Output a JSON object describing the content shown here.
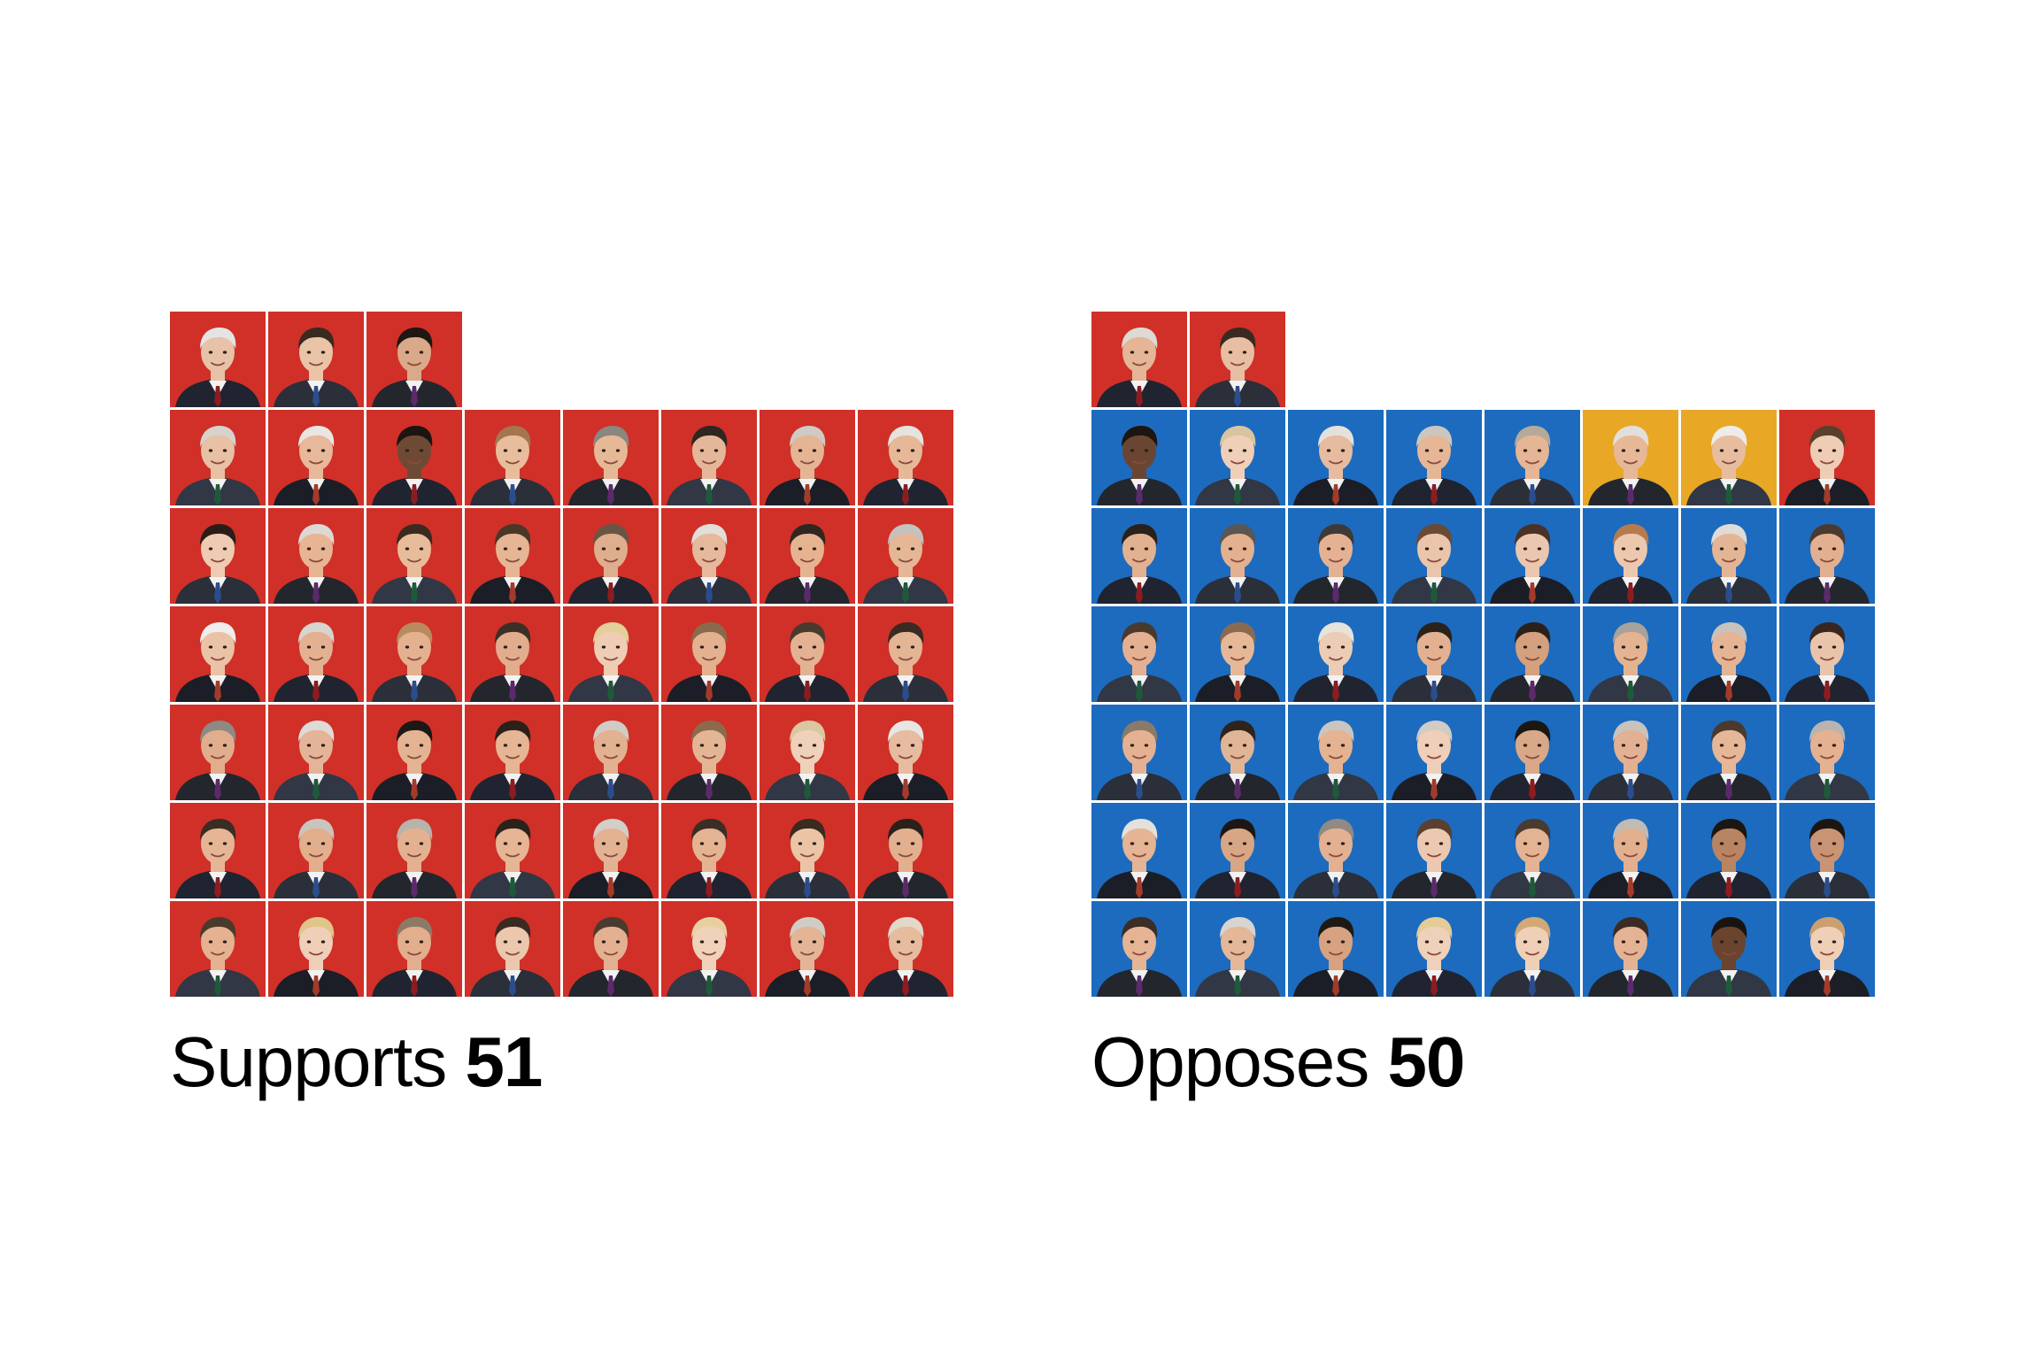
{
  "colors": {
    "republican": "#d03028",
    "democrat": "#1c6bbf",
    "independent": "#e8a826",
    "background": "#ffffff",
    "text": "#000000"
  },
  "chart_data": {
    "type": "waffle",
    "title": "",
    "groups": [
      {
        "key": "supports",
        "label": "Supports",
        "count": 51,
        "seats": [
          {
            "party": "republican",
            "skin": "#e7c2a8",
            "hair": "#e4e4e4"
          },
          {
            "party": "republican",
            "skin": "#e9c4a6",
            "hair": "#3a2a20"
          },
          {
            "party": "republican",
            "skin": "#d9a98a",
            "hair": "#1e1712"
          },
          {
            "party": "republican",
            "skin": "#e8c0a4",
            "hair": "#d7d2cc"
          },
          {
            "party": "republican",
            "skin": "#e7b899",
            "hair": "#e9e6e2"
          },
          {
            "party": "republican",
            "skin": "#6e4a34",
            "hair": "#1c1512"
          },
          {
            "party": "republican",
            "skin": "#e8bd9c",
            "hair": "#a3764f"
          },
          {
            "party": "republican",
            "skin": "#e6b996",
            "hair": "#8a8680"
          },
          {
            "party": "republican",
            "skin": "#e5b79a",
            "hair": "#2e2620"
          },
          {
            "party": "republican",
            "skin": "#e4b495",
            "hair": "#cfcac4"
          },
          {
            "party": "republican",
            "skin": "#e6b898",
            "hair": "#e6e3df"
          },
          {
            "party": "republican",
            "skin": "#efcbb3",
            "hair": "#2a1d17"
          },
          {
            "party": "republican",
            "skin": "#e7b594",
            "hair": "#dcd9d5"
          },
          {
            "party": "republican",
            "skin": "#e8bc9a",
            "hair": "#3a2a20"
          },
          {
            "party": "republican",
            "skin": "#e5b594",
            "hair": "#4a3728"
          },
          {
            "party": "republican",
            "skin": "#dfae8e",
            "hair": "#6a5544"
          },
          {
            "party": "republican",
            "skin": "#e6b99c",
            "hair": "#e2ded8"
          },
          {
            "party": "republican",
            "skin": "#e6b391",
            "hair": "#2f2720"
          },
          {
            "party": "republican",
            "skin": "#e5b796",
            "hair": "#c5c1bc"
          },
          {
            "party": "republican",
            "skin": "#eac3a6",
            "hair": "#f0eeec"
          },
          {
            "party": "republican",
            "skin": "#e3b191",
            "hair": "#d8d4cf"
          },
          {
            "party": "republican",
            "skin": "#e4b190",
            "hair": "#b98a5e"
          },
          {
            "party": "republican",
            "skin": "#e1ad8c",
            "hair": "#3c2f26"
          },
          {
            "party": "republican",
            "skin": "#efcdb4",
            "hair": "#e2cf9a"
          },
          {
            "party": "republican",
            "skin": "#e4b190",
            "hair": "#8a6a4c"
          },
          {
            "party": "republican",
            "skin": "#e3b292",
            "hair": "#4a3a2e"
          },
          {
            "party": "republican",
            "skin": "#e4b595",
            "hair": "#3a2a22"
          },
          {
            "party": "republican",
            "skin": "#e0ad8d",
            "hair": "#8e8984"
          },
          {
            "party": "republican",
            "skin": "#e3b497",
            "hair": "#dedbd6"
          },
          {
            "party": "republican",
            "skin": "#e4b392",
            "hair": "#1d1815"
          },
          {
            "party": "republican",
            "skin": "#e5b594",
            "hair": "#2a211b"
          },
          {
            "party": "republican",
            "skin": "#e2b191",
            "hair": "#cfcbc5"
          },
          {
            "party": "republican",
            "skin": "#e4b594",
            "hair": "#8c6a4c"
          },
          {
            "party": "republican",
            "skin": "#efd0b9",
            "hair": "#d9c7a0"
          },
          {
            "party": "republican",
            "skin": "#e6bba0",
            "hair": "#e8e6e2"
          },
          {
            "party": "republican",
            "skin": "#e5b595",
            "hair": "#3a2d24"
          },
          {
            "party": "republican",
            "skin": "#e2ae8c",
            "hair": "#c9c4be"
          },
          {
            "party": "republican",
            "skin": "#e3b190",
            "hair": "#b7b2ac"
          },
          {
            "party": "republican",
            "skin": "#e5b594",
            "hair": "#2b221c"
          },
          {
            "party": "republican",
            "skin": "#e3b293",
            "hair": "#d2cec8"
          },
          {
            "party": "republican",
            "skin": "#e4b391",
            "hair": "#3a2e26"
          },
          {
            "party": "republican",
            "skin": "#ebc4a6",
            "hair": "#3a2a20"
          },
          {
            "party": "republican",
            "skin": "#e2af8f",
            "hair": "#2a211c"
          },
          {
            "party": "republican",
            "skin": "#e4b291",
            "hair": "#4a3a2c"
          },
          {
            "party": "republican",
            "skin": "#efcfb8",
            "hair": "#e0c488"
          },
          {
            "party": "republican",
            "skin": "#e2ae8d",
            "hair": "#8d7a66"
          },
          {
            "party": "republican",
            "skin": "#eac7ad",
            "hair": "#3a2a22"
          },
          {
            "party": "republican",
            "skin": "#e3b091",
            "hair": "#4a3b2e"
          },
          {
            "party": "republican",
            "skin": "#f0d2bb",
            "hair": "#e7cfa2"
          },
          {
            "party": "republican",
            "skin": "#e3b596",
            "hair": "#d1ccc6"
          },
          {
            "party": "republican",
            "skin": "#e6bb9e",
            "hair": "#e2d8c8"
          }
        ]
      },
      {
        "key": "opposes",
        "label": "Opposes",
        "count": 50,
        "seats": [
          {
            "party": "republican",
            "skin": "#e4b596",
            "hair": "#ddd9d4"
          },
          {
            "party": "republican",
            "skin": "#e8bea2",
            "hair": "#3a2a22"
          },
          {
            "party": "democrat",
            "skin": "#6a4632",
            "hair": "#1c1512"
          },
          {
            "party": "democrat",
            "skin": "#efcfb8",
            "hair": "#d8c4a0"
          },
          {
            "party": "democrat",
            "skin": "#e6bba0",
            "hair": "#e4e1dd"
          },
          {
            "party": "democrat",
            "skin": "#e5b797",
            "hair": "#cbc6c0"
          },
          {
            "party": "democrat",
            "skin": "#e5b695",
            "hair": "#b6a99a"
          },
          {
            "party": "independent",
            "skin": "#e6b898",
            "hair": "#e2dfda"
          },
          {
            "party": "independent",
            "skin": "#e8bd9f",
            "hair": "#eeeceb"
          },
          {
            "party": "republican",
            "skin": "#efcdb5",
            "hair": "#5a3f2c"
          },
          {
            "party": "democrat",
            "skin": "#e2b191",
            "hair": "#2a211b"
          },
          {
            "party": "democrat",
            "skin": "#e3b090",
            "hair": "#5a5652"
          },
          {
            "party": "democrat",
            "skin": "#e4b292",
            "hair": "#3e3a36"
          },
          {
            "party": "democrat",
            "skin": "#eac5ab",
            "hair": "#6a4a34"
          },
          {
            "party": "democrat",
            "skin": "#eac7ae",
            "hair": "#4a3326"
          },
          {
            "party": "democrat",
            "skin": "#ecc8ae",
            "hair": "#b57b4e"
          },
          {
            "party": "democrat",
            "skin": "#e4b595",
            "hair": "#dfdcd7"
          },
          {
            "party": "democrat",
            "skin": "#e2b091",
            "hair": "#4a3a30"
          },
          {
            "party": "democrat",
            "skin": "#e3b192",
            "hair": "#4a3a2e"
          },
          {
            "party": "democrat",
            "skin": "#e6b898",
            "hair": "#8a6a4e"
          },
          {
            "party": "democrat",
            "skin": "#ecccb4",
            "hair": "#e6e2dc"
          },
          {
            "party": "democrat",
            "skin": "#e3b192",
            "hair": "#2b221c"
          },
          {
            "party": "democrat",
            "skin": "#d4a07e",
            "hair": "#2a211b"
          },
          {
            "party": "democrat",
            "skin": "#e4b391",
            "hair": "#a8a29b"
          },
          {
            "party": "democrat",
            "skin": "#e4b494",
            "hair": "#c7c2bc"
          },
          {
            "party": "democrat",
            "skin": "#eac4aa",
            "hair": "#3a2620"
          },
          {
            "party": "democrat",
            "skin": "#e4b292",
            "hair": "#8a7a6a"
          },
          {
            "party": "democrat",
            "skin": "#e0b595",
            "hair": "#2e241e"
          },
          {
            "party": "democrat",
            "skin": "#e4b391",
            "hair": "#cac5bf"
          },
          {
            "party": "democrat",
            "skin": "#efcfb7",
            "hair": "#cfcbc5"
          },
          {
            "party": "democrat",
            "skin": "#d9a888",
            "hair": "#1b1715"
          },
          {
            "party": "democrat",
            "skin": "#e2b193",
            "hair": "#c8c3bd"
          },
          {
            "party": "democrat",
            "skin": "#e6b797",
            "hair": "#4a3a2e"
          },
          {
            "party": "democrat",
            "skin": "#e4b191",
            "hair": "#b9b4ae"
          },
          {
            "party": "democrat",
            "skin": "#e4b494",
            "hair": "#e4e1dd"
          },
          {
            "party": "democrat",
            "skin": "#d7a684",
            "hair": "#1c1714"
          },
          {
            "party": "democrat",
            "skin": "#e3b191",
            "hair": "#8f8a84"
          },
          {
            "party": "democrat",
            "skin": "#ecc8b0",
            "hair": "#5a4030"
          },
          {
            "party": "democrat",
            "skin": "#e4b393",
            "hair": "#4a3a2f"
          },
          {
            "party": "democrat",
            "skin": "#e2af8f",
            "hair": "#c0bbb5"
          },
          {
            "party": "democrat",
            "skin": "#b88462",
            "hair": "#1b1612"
          },
          {
            "party": "democrat",
            "skin": "#c99474",
            "hair": "#1c1612"
          },
          {
            "party": "democrat",
            "skin": "#e4b495",
            "hair": "#3a2e26"
          },
          {
            "party": "democrat",
            "skin": "#e3b797",
            "hair": "#d8d4cf"
          },
          {
            "party": "democrat",
            "skin": "#d6a281",
            "hair": "#1f1914"
          },
          {
            "party": "democrat",
            "skin": "#efd1b9",
            "hair": "#e3cc98"
          },
          {
            "party": "democrat",
            "skin": "#efcfb6",
            "hair": "#d2a976"
          },
          {
            "party": "democrat",
            "skin": "#e4b394",
            "hair": "#3a2c22"
          },
          {
            "party": "democrat",
            "skin": "#6a442f",
            "hair": "#1a1410"
          },
          {
            "party": "democrat",
            "skin": "#efcfb6",
            "hair": "#caa070"
          }
        ]
      }
    ]
  }
}
